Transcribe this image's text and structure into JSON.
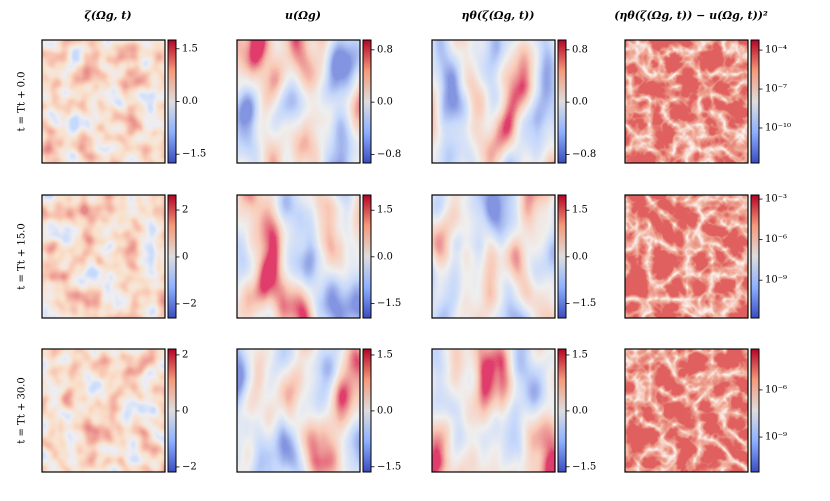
{
  "columns": [
    "ζ(Ωg, t)",
    "u(Ωg)",
    "ηθ(ζ(Ωg, t))",
    "(ηθ(ζ(Ωg, t)) − u(Ωg, t))²"
  ],
  "rows": [
    {
      "label": "t = Tt + 0.0",
      "colorbars": [
        {
          "lim": [
            -1.75,
            1.75
          ],
          "ticks": [
            {
              "value": 1.5,
              "label": "1.5"
            },
            {
              "value": 0,
              "label": "0.0"
            },
            {
              "value": -1.5,
              "label": "−1.5"
            }
          ]
        },
        {
          "lim": [
            -0.93,
            0.95
          ],
          "ticks": [
            {
              "value": 0.8,
              "label": "0.8"
            },
            {
              "value": 0,
              "label": "0.0"
            },
            {
              "value": -0.8,
              "label": "−0.8"
            }
          ]
        },
        {
          "lim": [
            -0.93,
            0.95
          ],
          "ticks": [
            {
              "value": 0.8,
              "label": "0.8"
            },
            {
              "value": 0,
              "label": "0.0"
            },
            {
              "value": -0.8,
              "label": "−0.8"
            }
          ]
        },
        {
          "log": true,
          "lim": [
            2e-13,
            0.0006
          ],
          "ticks": [
            {
              "value": 0.0001,
              "label": "10⁻⁴"
            },
            {
              "value": 1e-07,
              "label": "10⁻⁷"
            },
            {
              "value": 1e-10,
              "label": "10⁻¹⁰"
            }
          ]
        }
      ]
    },
    {
      "label": "t = Tt + 15.0",
      "colorbars": [
        {
          "lim": [
            -2.6,
            2.64
          ],
          "ticks": [
            2,
            0,
            {
              "value": -2,
              "label": "−2"
            }
          ]
        },
        {
          "lim": [
            -1.97,
            1.99
          ],
          "ticks": [
            {
              "value": 1.5,
              "label": "1.5"
            },
            {
              "value": 0,
              "label": "0.0"
            },
            {
              "value": -1.5,
              "label": "−1.5"
            }
          ]
        },
        {
          "lim": [
            -1.97,
            1.99
          ],
          "ticks": [
            {
              "value": 1.5,
              "label": "1.5"
            },
            {
              "value": 0,
              "label": "0.0"
            },
            {
              "value": -1.5,
              "label": "−1.5"
            }
          ]
        },
        {
          "log": true,
          "lim": [
            1.6e-12,
            0.002
          ],
          "ticks": [
            {
              "value": 0.001,
              "label": "10⁻³"
            },
            {
              "value": 1e-06,
              "label": "10⁻⁶"
            },
            {
              "value": 1e-09,
              "label": "10⁻⁹"
            }
          ]
        }
      ]
    },
    {
      "label": "t = Tt + 30.0",
      "colorbars": [
        {
          "lim": [
            -2.18,
            2.21
          ],
          "ticks": [
            2,
            0,
            {
              "value": -2,
              "label": "−2"
            }
          ]
        },
        {
          "lim": [
            -1.64,
            1.66
          ],
          "ticks": [
            {
              "value": 1.5,
              "label": "1.5"
            },
            {
              "value": 0,
              "label": "0.0"
            },
            {
              "value": -1.5,
              "label": "−1.5"
            }
          ]
        },
        {
          "lim": [
            -1.64,
            1.66
          ],
          "ticks": [
            {
              "value": 1.5,
              "label": "1.5"
            },
            {
              "value": 0,
              "label": "0.0"
            },
            {
              "value": -1.5,
              "label": "−1.5"
            }
          ]
        },
        {
          "log": true,
          "lim": [
            6e-12,
            0.0004
          ],
          "ticks": [
            {
              "value": 1e-06,
              "label": "10⁻⁶"
            },
            {
              "value": 1e-09,
              "label": "10⁻⁹"
            }
          ]
        }
      ]
    }
  ]
}
